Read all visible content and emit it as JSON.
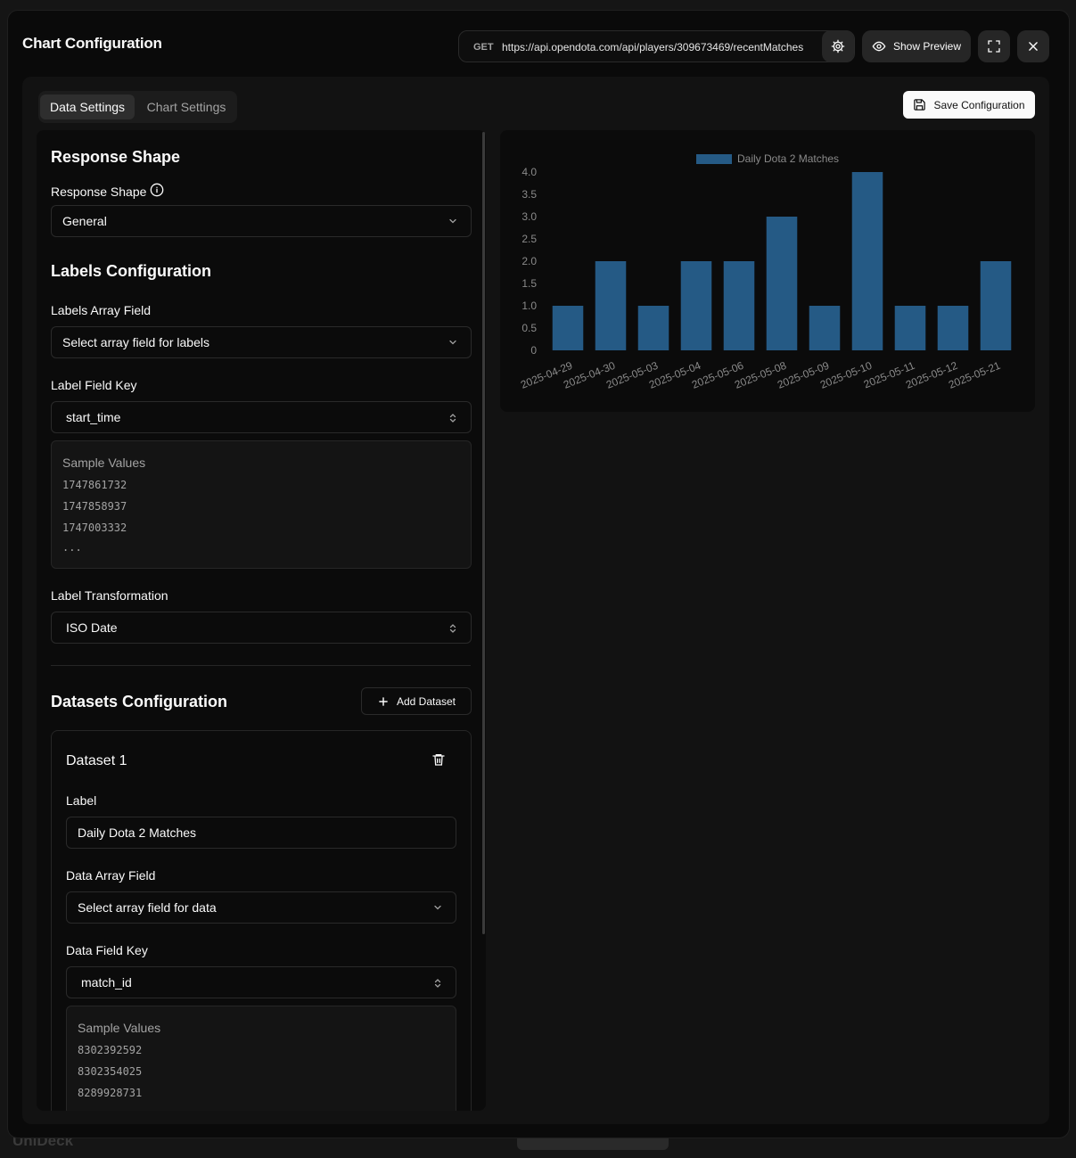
{
  "background": {
    "app_name": "UniDeck"
  },
  "modal": {
    "title": "Chart Configuration"
  },
  "endpoint": {
    "method": "GET",
    "url": "https://api.opendota.com/api/players/309673469/recentMatches"
  },
  "header_buttons": {
    "preview_label": "Show Preview"
  },
  "tabs": [
    {
      "label": "Data Settings",
      "active": true
    },
    {
      "label": "Chart Settings",
      "active": false
    }
  ],
  "save_button": {
    "label": "Save Configuration"
  },
  "response_shape": {
    "section_title": "Response Shape",
    "field_label": "Response Shape",
    "value": "General"
  },
  "labels_config": {
    "section_title": "Labels Configuration",
    "array_field_label": "Labels Array Field",
    "array_field_value": "Select array field for labels",
    "field_key_label": "Label Field Key",
    "field_key_value": "start_time",
    "sample_title": "Sample Values",
    "samples": [
      "1747861732",
      "1747858937",
      "1747003332",
      "..."
    ],
    "transform_label": "Label Transformation",
    "transform_value": "ISO Date"
  },
  "datasets_config": {
    "section_title": "Datasets Configuration",
    "add_label": "Add Dataset",
    "dataset": {
      "title": "Dataset 1",
      "label_label": "Label",
      "label_value": "Daily Dota 2 Matches",
      "array_field_label": "Data Array Field",
      "array_field_value": "Select array field for data",
      "field_key_label": "Data Field Key",
      "field_key_value": "match_id",
      "sample_title": "Sample Values",
      "samples": [
        "8302392592",
        "8302354025",
        "8289928731"
      ]
    }
  },
  "colors": {
    "bar": "#255a85",
    "accent_text": "#fafafa",
    "muted_text": "#a3a3a3"
  },
  "chart_data": {
    "type": "bar",
    "categories": [
      "2025-04-29",
      "2025-04-30",
      "2025-05-03",
      "2025-05-04",
      "2025-05-06",
      "2025-05-08",
      "2025-05-09",
      "2025-05-10",
      "2025-05-11",
      "2025-05-12",
      "2025-05-21"
    ],
    "series": [
      {
        "name": "Daily Dota 2 Matches",
        "values": [
          1,
          2,
          1,
          2,
          2,
          3,
          1,
          4,
          1,
          1,
          2
        ]
      }
    ],
    "ylim": [
      0,
      4
    ],
    "yticks": [
      "0",
      "0.5",
      "1.0",
      "1.5",
      "2.0",
      "2.5",
      "3.0",
      "3.5",
      "4.0"
    ],
    "legend": "top",
    "grid": false
  }
}
